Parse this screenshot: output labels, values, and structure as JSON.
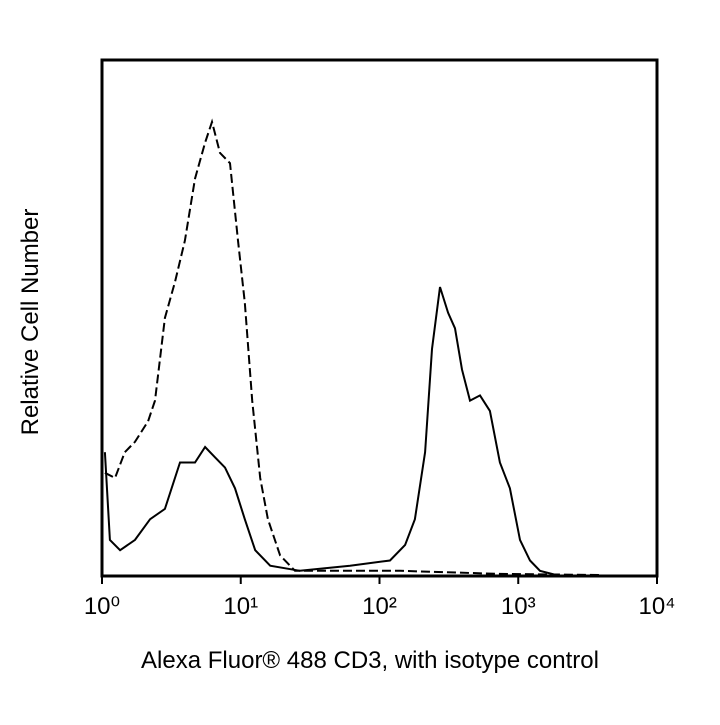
{
  "chart_data": {
    "type": "line",
    "xlabel": "Alexa Fluor® 488 CD3, with isotype control",
    "ylabel": "Relative Cell Number",
    "xscale": "log",
    "xlim": [
      1,
      10000
    ],
    "xticks": [
      {
        "value": 1,
        "label": "10⁰"
      },
      {
        "value": 10,
        "label": "10¹"
      },
      {
        "value": 100,
        "label": "10²"
      },
      {
        "value": 1000,
        "label": "10³"
      },
      {
        "value": 10000,
        "label": "10⁴"
      }
    ],
    "ylim": [
      0,
      100
    ],
    "yticks": [],
    "series": [
      {
        "color": "#000000",
        "style": "dashed",
        "x": [
          1.05,
          1.24,
          1.46,
          1.73,
          2.15,
          2.41,
          2.84,
          3.36,
          3.96,
          4.68,
          5.53,
          6.21,
          7.09,
          8.36,
          9.55,
          10.7,
          12.1,
          13.8,
          15.7,
          19.2,
          24.6,
          44,
          141,
          738,
          3880
        ],
        "values": [
          20,
          19,
          24,
          26,
          30,
          34,
          50,
          57,
          65,
          77,
          84,
          88,
          82,
          80,
          65,
          53,
          34,
          19,
          11,
          4,
          1,
          1,
          1,
          0.4,
          0.2
        ]
      },
      {
        "color": "#000000",
        "style": "solid",
        "x": [
          1.05,
          1.14,
          1.35,
          1.73,
          2.22,
          2.84,
          3.65,
          4.68,
          5.53,
          6.52,
          7.7,
          9.09,
          10.7,
          12.7,
          16.3,
          26.7,
          61.3,
          119,
          153,
          180,
          213,
          239,
          273,
          312,
          350,
          393,
          449,
          530,
          625,
          738,
          871,
          1030,
          1215,
          1435,
          2000,
          7530
        ],
        "values": [
          24,
          7,
          5,
          7,
          11,
          13,
          22,
          22,
          25,
          23,
          21,
          17,
          11,
          5,
          2,
          1,
          2,
          3,
          6,
          11,
          24,
          44,
          56,
          51,
          48,
          40,
          34,
          35,
          32,
          22,
          17,
          7,
          3,
          1,
          0,
          0
        ]
      }
    ]
  }
}
